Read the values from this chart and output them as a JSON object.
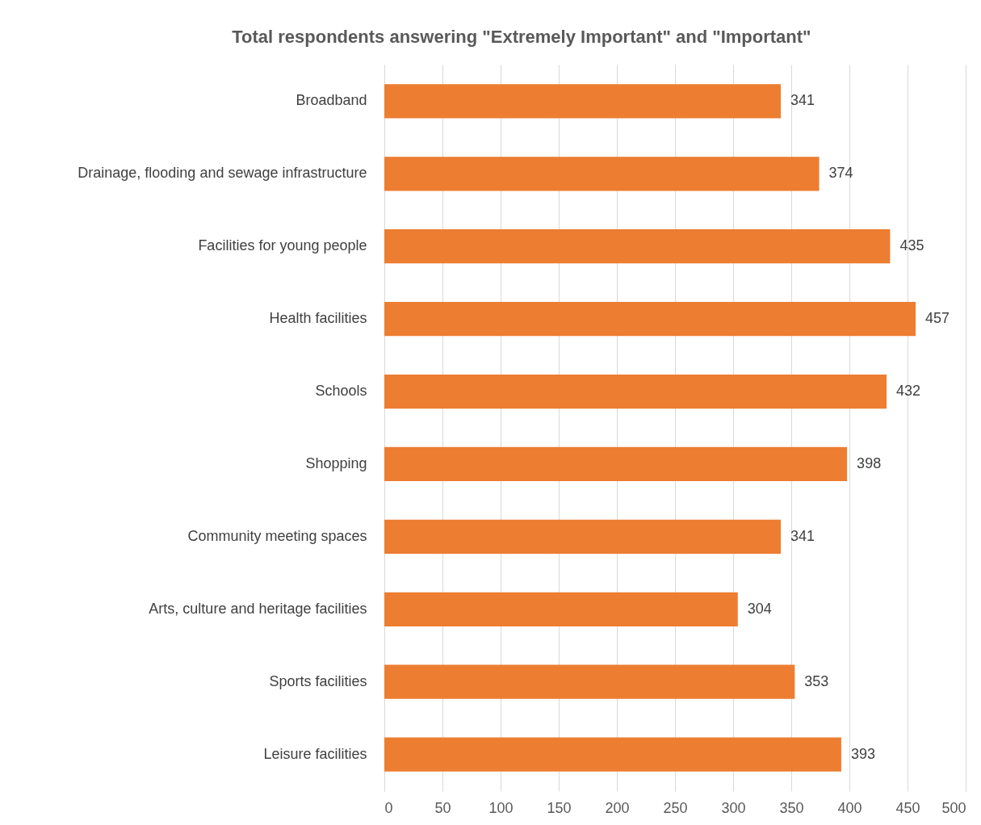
{
  "chart_data": {
    "type": "bar",
    "orientation": "horizontal",
    "title": "Total respondents answering \"Extremely Important\" and \"Important\"",
    "categories": [
      "Broadband",
      "Drainage, flooding and sewage infrastructure",
      "Facilities for young people",
      "Health facilities",
      "Schools",
      "Shopping",
      "Community meeting spaces",
      "Arts, culture and heritage facilities",
      "Sports facilities",
      "Leisure facilities"
    ],
    "values": [
      341,
      374,
      435,
      457,
      432,
      398,
      341,
      304,
      353,
      393
    ],
    "color": "#ed7d31",
    "xlim": [
      0,
      500
    ],
    "xticks": [
      0,
      50,
      100,
      150,
      200,
      250,
      300,
      350,
      400,
      450,
      500
    ],
    "grid": "x",
    "data_labels": true
  }
}
